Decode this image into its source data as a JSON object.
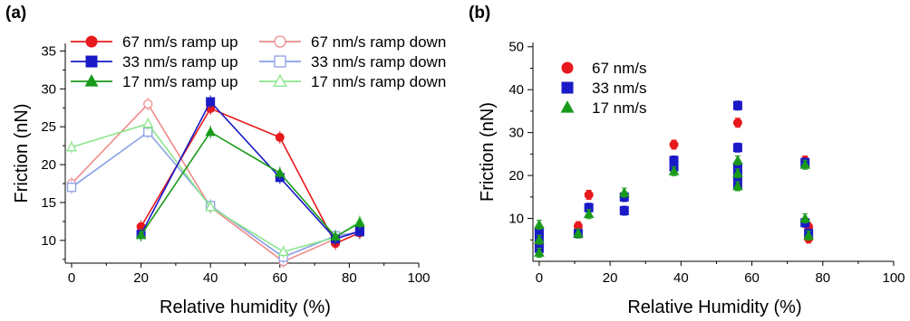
{
  "chart_data": [
    {
      "panel": "(a)",
      "type": "line",
      "xlabel": "Relative humidity (%)",
      "ylabel": "Friction (nN)",
      "xlim": [
        0,
        100
      ],
      "ylim": [
        7,
        36
      ],
      "xticks": [
        0,
        20,
        40,
        60,
        80,
        100
      ],
      "yticks": [
        10,
        15,
        20,
        25,
        30,
        35
      ],
      "legend_position": "top-inside, two columns",
      "series": [
        {
          "name": "67 nm/s ramp up",
          "color": "#e8191c",
          "marker": "circle",
          "filled": true,
          "x": [
            20,
            40,
            60,
            76,
            83
          ],
          "y": [
            11.8,
            27.4,
            23.6,
            9.6,
            11.0
          ]
        },
        {
          "name": "33 nm/s ramp up",
          "color": "#1a1ac8",
          "marker": "square",
          "filled": true,
          "x": [
            20,
            40,
            60,
            76,
            83
          ],
          "y": [
            10.8,
            28.3,
            18.3,
            10.2,
            11.2
          ]
        },
        {
          "name": "17 nm/s ramp up",
          "color": "#1a9a1a",
          "marker": "triangle",
          "filled": true,
          "x": [
            20,
            40,
            60,
            76,
            83
          ],
          "y": [
            10.7,
            24.3,
            18.9,
            10.5,
            12.3
          ]
        },
        {
          "name": "67 nm/s ramp down",
          "color": "#f08a8a",
          "marker": "circle",
          "filled": false,
          "x": [
            0,
            22,
            40,
            61,
            76,
            83
          ],
          "y": [
            17.5,
            28.0,
            14.4,
            7.2,
            10.2,
            11.3
          ]
        },
        {
          "name": "33 nm/s ramp down",
          "color": "#8aa0e6",
          "marker": "square",
          "filled": false,
          "x": [
            0,
            22,
            40,
            61,
            76,
            83
          ],
          "y": [
            17.0,
            24.3,
            14.6,
            7.8,
            10.6,
            11.1
          ]
        },
        {
          "name": "17 nm/s ramp down",
          "color": "#8ae68a",
          "marker": "triangle",
          "filled": false,
          "x": [
            0,
            22,
            40,
            61,
            76,
            83
          ],
          "y": [
            22.3,
            25.4,
            14.4,
            8.5,
            10.4,
            12.5
          ]
        }
      ]
    },
    {
      "panel": "(b)",
      "type": "scatter",
      "xlabel": "Relative Humidity (%)",
      "ylabel": "Friction (nN)",
      "xlim": [
        -1,
        100
      ],
      "ylim": [
        0,
        51
      ],
      "xticks": [
        0,
        20,
        40,
        60,
        80,
        100
      ],
      "yticks": [
        10,
        20,
        30,
        40,
        50
      ],
      "legend_position": "top-left",
      "series": [
        {
          "name": "67 nm/s",
          "color": "#e8191c",
          "marker": "circle",
          "x": [
            0,
            0,
            0,
            11,
            14,
            24,
            38,
            56,
            56,
            56,
            56,
            75,
            76,
            76
          ],
          "y": [
            4.0,
            5.5,
            7.0,
            8.2,
            15.5,
            15.0,
            27.2,
            32.3,
            22.5,
            20.5,
            18.5,
            23.5,
            5.3,
            8.0
          ]
        },
        {
          "name": "33 nm/s",
          "color": "#1a1ac8",
          "marker": "square",
          "x": [
            0,
            0,
            0,
            11,
            14,
            24,
            24,
            38,
            38,
            56,
            56,
            56,
            56,
            56,
            75,
            75,
            76
          ],
          "y": [
            3.0,
            5.5,
            7.0,
            6.5,
            12.5,
            11.8,
            15.0,
            22.0,
            23.5,
            36.3,
            26.5,
            22.0,
            20.0,
            18.0,
            23.0,
            9.0,
            6.5
          ]
        },
        {
          "name": "17 nm/s",
          "color": "#1a9a1a",
          "marker": "triangle",
          "x": [
            0,
            0,
            0,
            11,
            14,
            24,
            38,
            56,
            56,
            56,
            75,
            75,
            76
          ],
          "y": [
            2.0,
            5.0,
            8.5,
            6.5,
            11.0,
            16.0,
            21.0,
            17.5,
            20.5,
            23.5,
            22.5,
            10.0,
            6.0
          ]
        }
      ]
    }
  ]
}
